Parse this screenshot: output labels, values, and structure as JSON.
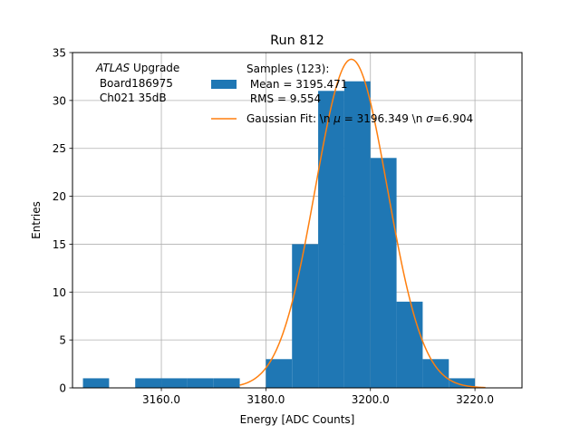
{
  "chart_data": {
    "type": "bar",
    "title": "Run 812",
    "xlabel": "Energy [ADC Counts]",
    "ylabel": "Entries",
    "xlim": [
      3143,
      3229
    ],
    "ylim": [
      0,
      35
    ],
    "x_ticks": [
      3160,
      3180,
      3200,
      3220
    ],
    "x_tick_labels": [
      "3160.0",
      "3180.0",
      "3200.0",
      "3220.0"
    ],
    "y_ticks": [
      0,
      5,
      10,
      15,
      20,
      25,
      30,
      35
    ],
    "y_tick_labels": [
      "0",
      "5",
      "10",
      "15",
      "20",
      "25",
      "30",
      "35"
    ],
    "grid": true,
    "bin_edges": [
      3145,
      3150,
      3155,
      3160,
      3165,
      3170,
      3175,
      3180,
      3185,
      3190,
      3195,
      3200,
      3205,
      3210,
      3215,
      3220
    ],
    "values": [
      1,
      0,
      1,
      1,
      1,
      1,
      0,
      3,
      15,
      31,
      32,
      24,
      9,
      3,
      1
    ],
    "fit": {
      "name": "Gaussian Fit: \\n $\\mu$ = 3196.349 \\n $\\sigma$=6.904",
      "mu": 3196.349,
      "sigma": 6.904,
      "amplitude": 34.3,
      "x_range": [
        3175,
        3222
      ]
    },
    "legend": {
      "placement": "top-center",
      "samples_lines": [
        "Samples (123):",
        " Mean = 3195.471",
        " RMS = 9.554"
      ],
      "fit_parts": [
        "Gaussian Fit: \\n ",
        "μ",
        " = 3196.349 \\n ",
        "σ",
        "=6.904"
      ]
    },
    "annotation": {
      "italic": "ATLAS",
      "rest": " Upgrade",
      "line2": " Board186975",
      "line3": " Ch021 35dB"
    },
    "colors": {
      "bars": "#1f77b4",
      "fit": "#ff7f0e",
      "grid": "#b0b0b0"
    }
  }
}
